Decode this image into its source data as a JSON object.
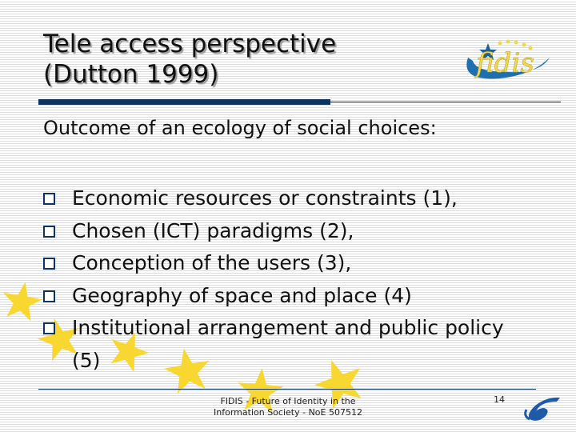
{
  "slide": {
    "title_lines": [
      "Tele access perspective",
      "(Dutton 1999)"
    ],
    "subtitle": "Outcome of an ecology of social choices:",
    "bullets": [
      "Economic resources or constraints (1),",
      "Chosen (ICT) paradigms (2),",
      "Conception of the users (3),",
      "Geography of space and place (4)",
      "Institutional arrangement and public policy (5)"
    ],
    "footer_lines": [
      "FIDIS - Future of Identity in the",
      "Information Society - NoE 507512"
    ],
    "page_number": "14",
    "logo_text": "fidis"
  },
  "colors": {
    "accent": "#0d3461",
    "star": "#f7d730",
    "logo_blue": "#1e6fb0"
  }
}
